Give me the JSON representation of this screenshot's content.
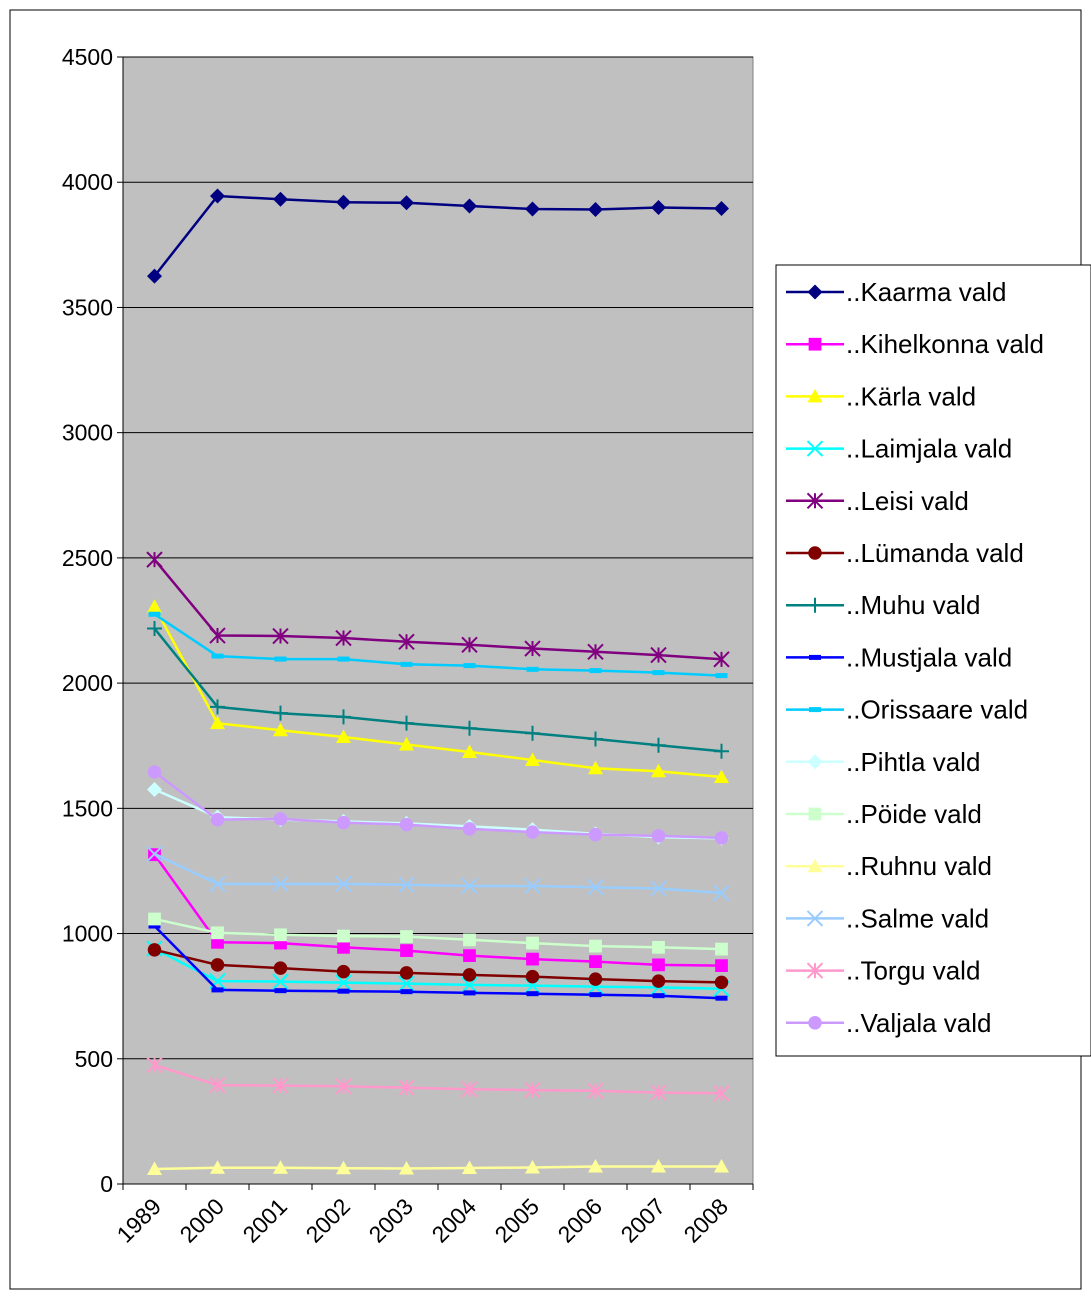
{
  "chart_data": {
    "type": "line",
    "title": "",
    "xlabel": "",
    "ylabel": "",
    "categories": [
      "1989",
      "2000",
      "2001",
      "2002",
      "2003",
      "2004",
      "2005",
      "2006",
      "2007",
      "2008"
    ],
    "ylim": [
      0,
      4500
    ],
    "yticks": [
      0,
      500,
      1000,
      1500,
      2000,
      2500,
      3000,
      3500,
      4000,
      4500
    ],
    "grid": "horizontal",
    "plot_background": "#c0c0c0",
    "legend_position": "right",
    "series": [
      {
        "name": "..Kaarma vald",
        "color": "#000080",
        "marker": "diamond",
        "values": [
          3625,
          3945,
          3932,
          3920,
          3918,
          3905,
          3893,
          3891,
          3899,
          3895
        ]
      },
      {
        "name": "..Kihelkonna vald",
        "color": "#ff00ff",
        "marker": "square",
        "values": [
          1315,
          965,
          962,
          945,
          932,
          912,
          898,
          888,
          875,
          872
        ]
      },
      {
        "name": "..Kärla vald",
        "color": "#ffff00",
        "marker": "triangle",
        "values": [
          2305,
          1840,
          1812,
          1785,
          1755,
          1725,
          1693,
          1660,
          1648,
          1625
        ]
      },
      {
        "name": "..Laimjala vald",
        "color": "#00ffff",
        "marker": "x",
        "values": [
          940,
          810,
          808,
          804,
          800,
          795,
          792,
          788,
          785,
          780
        ]
      },
      {
        "name": "..Leisi vald",
        "color": "#800080",
        "marker": "star",
        "values": [
          2493,
          2190,
          2188,
          2180,
          2165,
          2153,
          2138,
          2125,
          2112,
          2095
        ]
      },
      {
        "name": "..Lümanda vald",
        "color": "#800000",
        "marker": "circle",
        "values": [
          935,
          875,
          862,
          848,
          843,
          835,
          828,
          818,
          810,
          805
        ]
      },
      {
        "name": "..Muhu vald",
        "color": "#008080",
        "marker": "plus",
        "values": [
          2218,
          1905,
          1880,
          1865,
          1840,
          1820,
          1800,
          1777,
          1752,
          1728
        ]
      },
      {
        "name": "..Mustjala vald",
        "color": "#0000ff",
        "marker": "dash",
        "values": [
          1030,
          775,
          772,
          770,
          768,
          763,
          760,
          756,
          752,
          742
        ]
      },
      {
        "name": "..Orissaare vald",
        "color": "#00ccff",
        "marker": "dash",
        "values": [
          2275,
          2108,
          2096,
          2096,
          2075,
          2070,
          2055,
          2050,
          2042,
          2030
        ]
      },
      {
        "name": "..Pihtla vald",
        "color": "#ccffff",
        "marker": "diamond",
        "values": [
          1575,
          1465,
          1455,
          1448,
          1440,
          1428,
          1415,
          1398,
          1385,
          1380
        ]
      },
      {
        "name": "..Pöide vald",
        "color": "#ccffcc",
        "marker": "square",
        "values": [
          1058,
          1003,
          995,
          990,
          988,
          975,
          962,
          950,
          945,
          938
        ]
      },
      {
        "name": "..Ruhnu vald",
        "color": "#ffff99",
        "marker": "triangle",
        "values": [
          60,
          65,
          65,
          63,
          62,
          64,
          66,
          70,
          70,
          70
        ]
      },
      {
        "name": "..Salme vald",
        "color": "#99ccff",
        "marker": "x",
        "values": [
          1318,
          1198,
          1198,
          1198,
          1195,
          1190,
          1190,
          1185,
          1180,
          1162
        ]
      },
      {
        "name": "..Torgu vald",
        "color": "#ff99cc",
        "marker": "star",
        "values": [
          475,
          395,
          393,
          390,
          385,
          378,
          375,
          372,
          365,
          362
        ]
      },
      {
        "name": "..Valjala vald",
        "color": "#cc99ff",
        "marker": "circle",
        "values": [
          1645,
          1455,
          1458,
          1443,
          1435,
          1418,
          1405,
          1395,
          1390,
          1382
        ]
      }
    ]
  }
}
